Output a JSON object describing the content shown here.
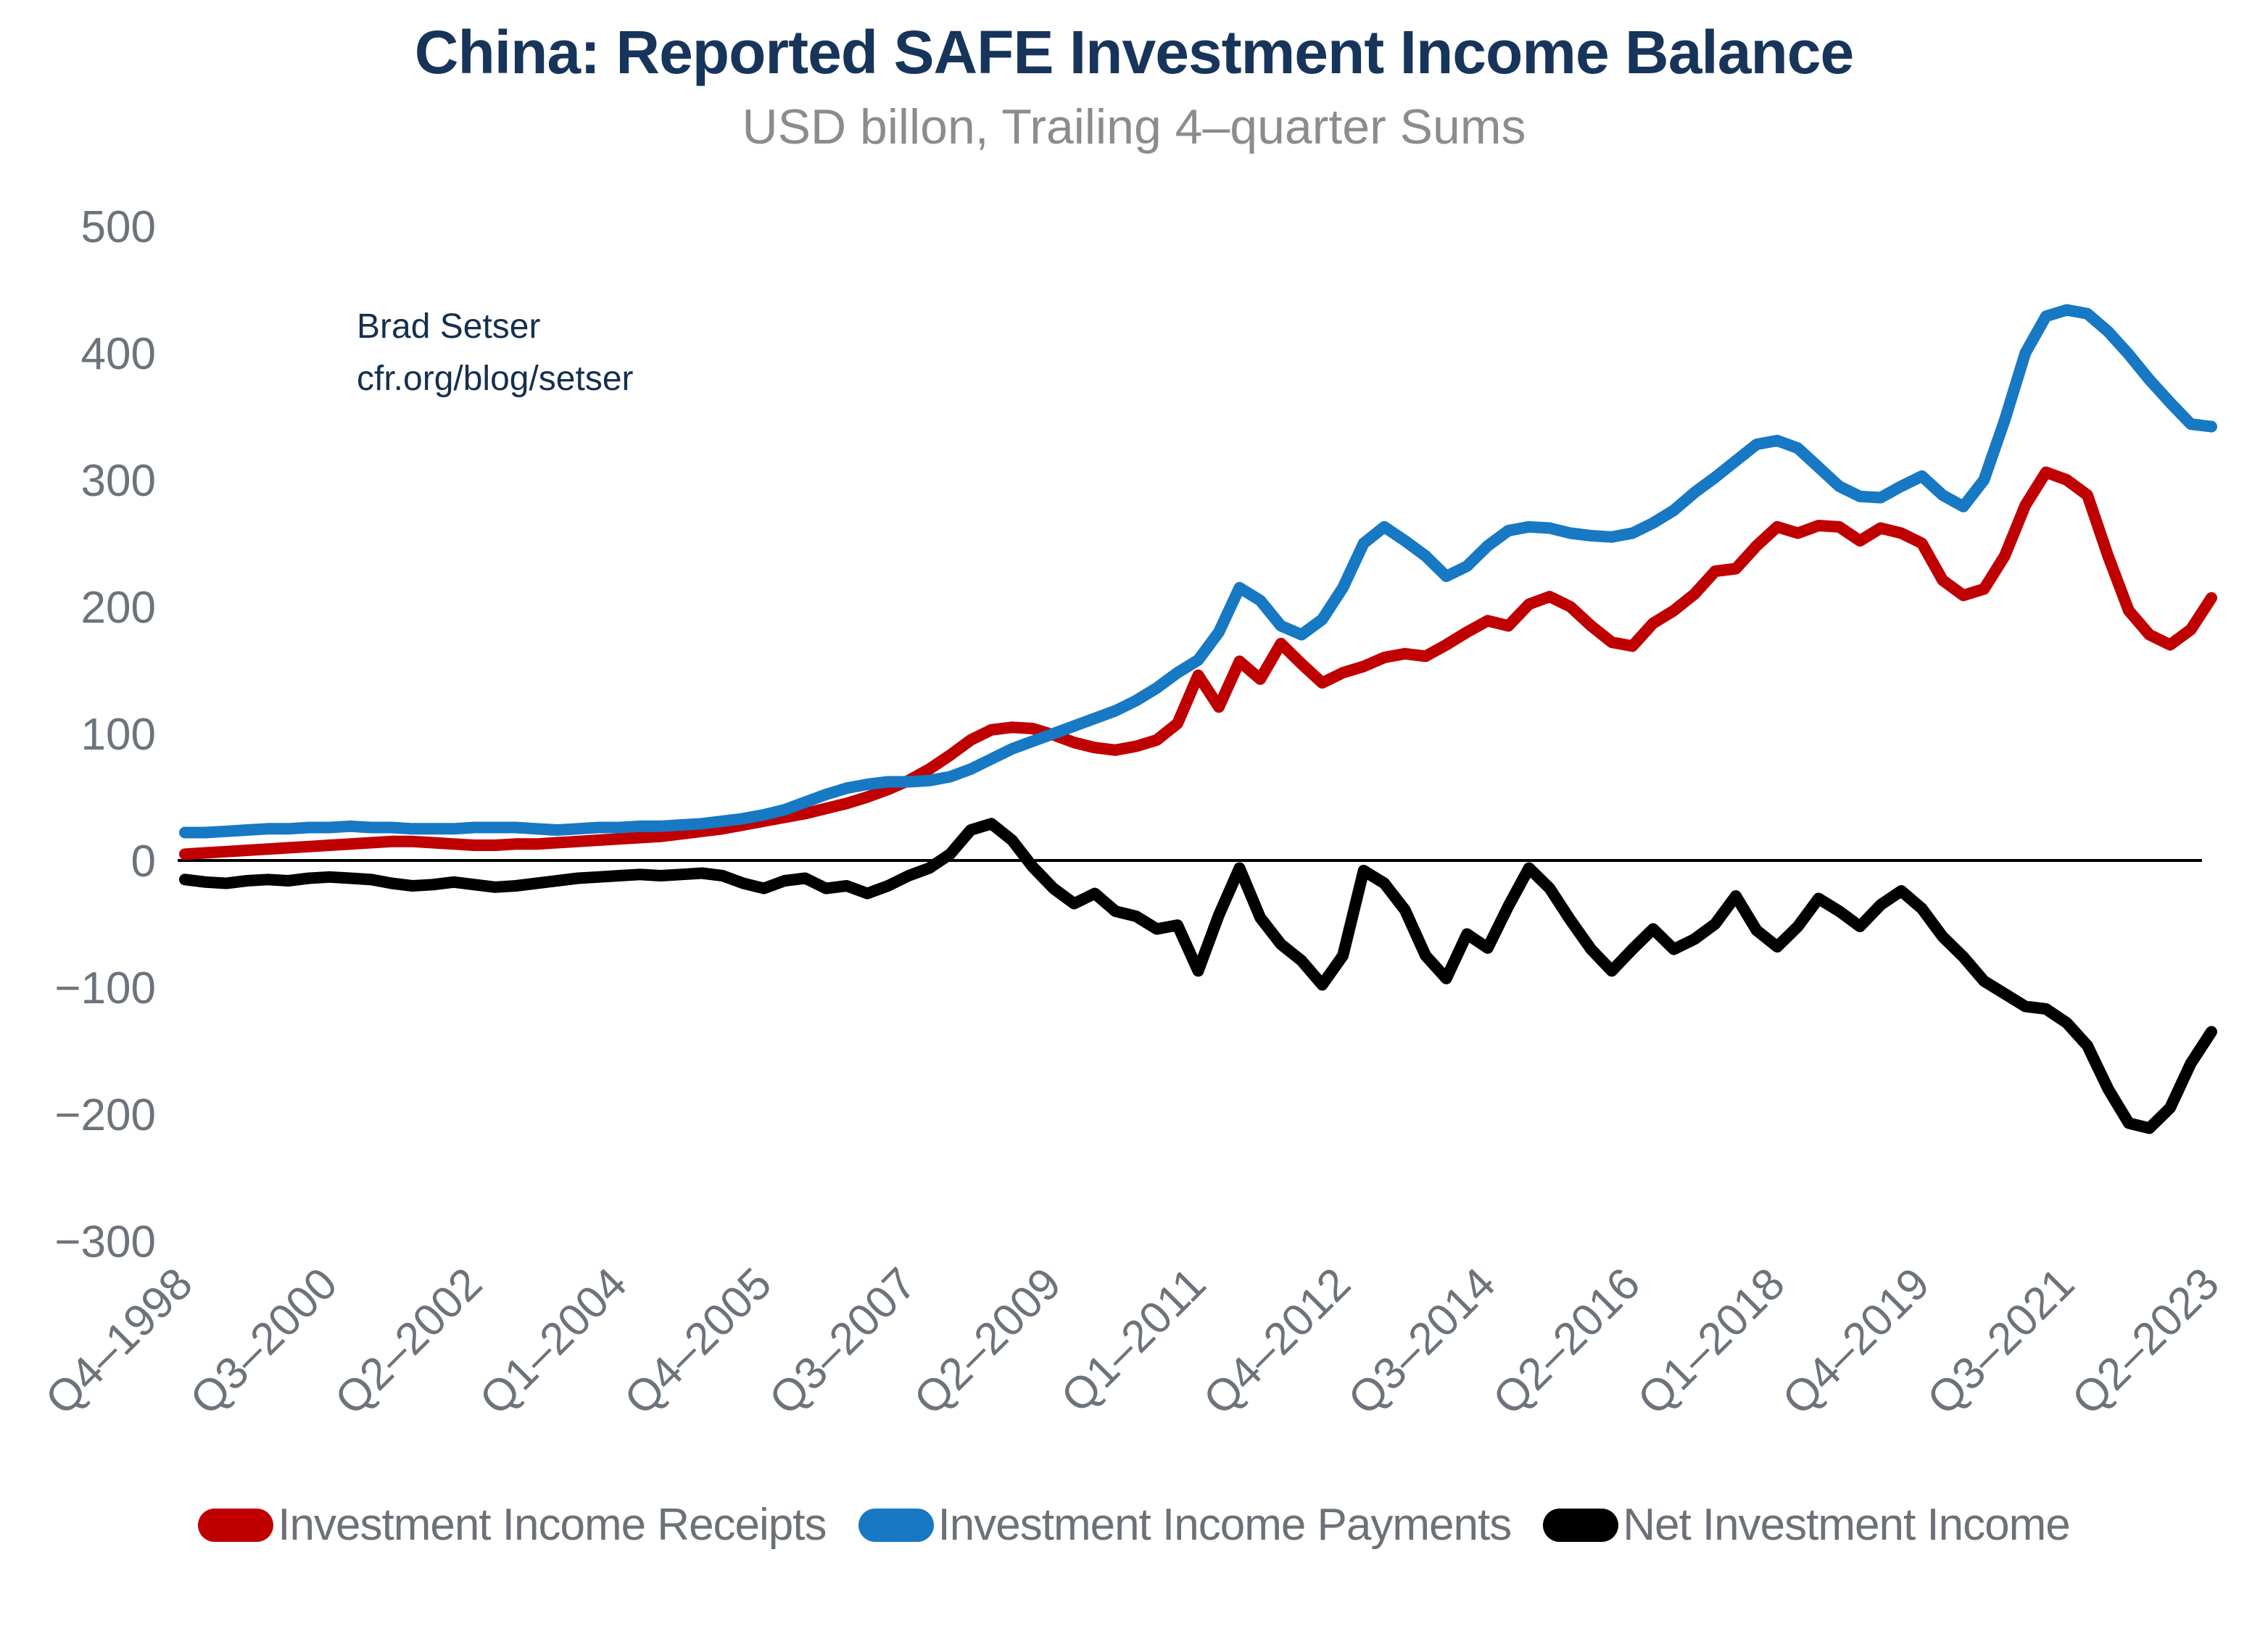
{
  "header": {
    "title": "China: Reported SAFE Investment Income Balance",
    "subtitle": "USD billon, Trailing 4–quarter Sums"
  },
  "annotation": {
    "line1": "Brad Setser",
    "line2": "cfr.org/blog/setser"
  },
  "colors": {
    "title": "#17355b",
    "subtitle": "#8c8c8c",
    "tick_labels": "#6d737b",
    "legend_text": "#6b7177",
    "receipts": "#c00000",
    "payments": "#1778c4",
    "net": "#000000",
    "zero_line": "#000000"
  },
  "legend": [
    {
      "label": "Investment Income Receipts",
      "color": "#c00000"
    },
    {
      "label": "Investment Income Payments",
      "color": "#1778c4"
    },
    {
      "label": "Net Investment Income",
      "color": "#000000"
    }
  ],
  "chart_data": {
    "type": "line",
    "title": "China: Reported SAFE Investment Income Balance",
    "subtitle": "USD billon, Trailing 4-quarter Sums",
    "x_note": "Quarterly points from Q4-1998 (index 0) to Q2-2023 (index 98), 99 points per series",
    "x_tick_indices": [
      0,
      7,
      14,
      21,
      28,
      35,
      42,
      49,
      56,
      63,
      70,
      77,
      84,
      91,
      98
    ],
    "x_tick_labels": [
      "Q4–1998",
      "Q3–2000",
      "Q2–2002",
      "Q1–2004",
      "Q4–2005",
      "Q3–2007",
      "Q2–2009",
      "Q1–2011",
      "Q4–2012",
      "Q3–2014",
      "Q2–2016",
      "Q1–2018",
      "Q4–2019",
      "Q3–2021",
      "Q2–2023"
    ],
    "ylim": [
      -300,
      500
    ],
    "y_ticks": [
      {
        "label": "500",
        "value": 500
      },
      {
        "label": "400",
        "value": 400
      },
      {
        "label": "300",
        "value": 300
      },
      {
        "label": "200",
        "value": 200
      },
      {
        "label": "100",
        "value": 100
      },
      {
        "label": "0",
        "value": 0
      },
      {
        "label": "−100",
        "value": -100
      },
      {
        "label": "−200",
        "value": -200
      },
      {
        "label": "−300",
        "value": -300
      }
    ],
    "grid": false,
    "zero_line": true,
    "legend_position": "bottom",
    "series": [
      {
        "name": "Investment Income Receipts",
        "color": "#c00000",
        "values": [
          5,
          6,
          7,
          8,
          9,
          10,
          11,
          12,
          13,
          14,
          15,
          15,
          14,
          13,
          12,
          12,
          13,
          13,
          14,
          15,
          16,
          17,
          18,
          19,
          21,
          23,
          25,
          28,
          31,
          34,
          37,
          41,
          45,
          50,
          56,
          63,
          72,
          83,
          95,
          103,
          105,
          104,
          99,
          93,
          89,
          87,
          90,
          95,
          108,
          146,
          121,
          157,
          143,
          171,
          155,
          140,
          148,
          153,
          160,
          163,
          161,
          170,
          180,
          189,
          185,
          202,
          208,
          200,
          185,
          172,
          169,
          187,
          197,
          210,
          228,
          230,
          248,
          263,
          258,
          264,
          263,
          252,
          262,
          258,
          250,
          221,
          209,
          214,
          240,
          280,
          306,
          300,
          288,
          240,
          197,
          178,
          170,
          182,
          207
        ]
      },
      {
        "name": "Investment Income Payments",
        "color": "#1778c4",
        "values": [
          22,
          22,
          23,
          24,
          25,
          25,
          26,
          26,
          27,
          26,
          26,
          25,
          25,
          25,
          26,
          26,
          26,
          25,
          24,
          25,
          26,
          26,
          27,
          27,
          28,
          29,
          31,
          33,
          36,
          40,
          46,
          52,
          57,
          60,
          62,
          62,
          63,
          66,
          72,
          80,
          88,
          94,
          100,
          106,
          112,
          118,
          126,
          136,
          148,
          158,
          180,
          215,
          205,
          185,
          178,
          190,
          215,
          250,
          263,
          252,
          240,
          224,
          232,
          248,
          260,
          263,
          262,
          258,
          256,
          255,
          258,
          266,
          276,
          290,
          302,
          315,
          328,
          331,
          325,
          310,
          295,
          287,
          286,
          295,
          303,
          288,
          279,
          300,
          347,
          400,
          429,
          434,
          431,
          417,
          399,
          379,
          361,
          344,
          342
        ]
      },
      {
        "name": "Net Investment Income",
        "color": "#000000",
        "values": [
          -15,
          -17,
          -18,
          -16,
          -15,
          -16,
          -14,
          -13,
          -14,
          -15,
          -18,
          -20,
          -19,
          -17,
          -19,
          -21,
          -20,
          -18,
          -16,
          -14,
          -13,
          -12,
          -11,
          -12,
          -11,
          -10,
          -12,
          -18,
          -22,
          -16,
          -14,
          -22,
          -20,
          -26,
          -20,
          -12,
          -6,
          5,
          24,
          29,
          16,
          -5,
          -22,
          -34,
          -26,
          -40,
          -44,
          -54,
          -51,
          -87,
          -43,
          -6,
          -45,
          -66,
          -79,
          -98,
          -75,
          -8,
          -18,
          -39,
          -75,
          -93,
          -58,
          -69,
          -36,
          -6,
          -22,
          -47,
          -70,
          -87,
          -70,
          -54,
          -70,
          -62,
          -50,
          -28,
          -55,
          -68,
          -52,
          -30,
          -40,
          -52,
          -35,
          -24,
          -38,
          -60,
          -76,
          -95,
          -105,
          -115,
          -117,
          -128,
          -146,
          -180,
          -207,
          -211,
          -195,
          -160,
          -135
        ]
      }
    ]
  }
}
